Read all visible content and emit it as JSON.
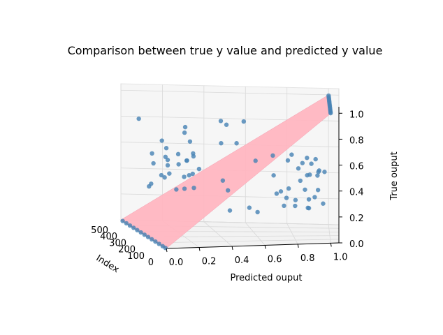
{
  "chart_data": {
    "type": "scatter",
    "projection": "3d",
    "title": "Comparison between true y value and predicted y value",
    "xlabel": "Predicted ouput",
    "ylabel": "Index",
    "zlabel": "True ouput",
    "xlim": [
      0,
      1.05
    ],
    "ylim": [
      0,
      500
    ],
    "zlim": [
      0,
      1.05
    ],
    "x_ticks": [
      "0.0",
      "0.2",
      "0.4",
      "0.6",
      "0.8",
      "1.0"
    ],
    "y_ticks": [
      "0",
      "100",
      "200",
      "300",
      "400",
      "500"
    ],
    "z_ticks": [
      "0.0",
      "0.2",
      "0.4",
      "0.6",
      "0.8",
      "1.0"
    ],
    "grid": true,
    "surface": {
      "description_equation": "true = predicted",
      "color": "#ffb6c1"
    },
    "point_color": "#4682b4",
    "series": [
      {
        "points": [
          [
            0.0,
            0.0,
            10
          ],
          [
            0.0,
            0.0,
            40
          ],
          [
            0.0,
            0.0,
            80
          ],
          [
            0.0,
            0.0,
            120
          ],
          [
            0.0,
            0.0,
            160
          ],
          [
            0.0,
            0.0,
            200
          ],
          [
            0.0,
            0.0,
            240
          ],
          [
            0.0,
            0.0,
            280
          ],
          [
            0.0,
            0.0,
            320
          ],
          [
            0.0,
            0.0,
            360
          ],
          [
            0.0,
            0.0,
            400
          ],
          [
            0.0,
            0.0,
            440
          ],
          [
            0.0,
            0.0,
            480
          ],
          [
            1.0,
            1.0,
            10
          ],
          [
            1.0,
            1.0,
            40
          ],
          [
            1.0,
            1.0,
            80
          ],
          [
            1.0,
            1.0,
            120
          ],
          [
            1.0,
            1.0,
            160
          ],
          [
            1.0,
            1.0,
            200
          ],
          [
            1.0,
            1.0,
            240
          ],
          [
            1.0,
            1.0,
            280
          ],
          [
            1.0,
            1.0,
            320
          ],
          [
            1.0,
            1.0,
            360
          ],
          [
            1.0,
            1.0,
            400
          ],
          [
            1.0,
            1.0,
            440
          ],
          [
            1.0,
            1.0,
            480
          ],
          [
            0.05,
            0.55,
            60
          ],
          [
            0.08,
            0.62,
            140
          ],
          [
            0.1,
            0.45,
            220
          ],
          [
            0.12,
            0.7,
            300
          ],
          [
            0.15,
            0.4,
            380
          ],
          [
            0.07,
            0.8,
            460
          ],
          [
            0.18,
            0.52,
            90
          ],
          [
            0.2,
            0.6,
            170
          ],
          [
            0.22,
            0.35,
            250
          ],
          [
            0.25,
            0.75,
            330
          ],
          [
            0.1,
            0.3,
            410
          ],
          [
            0.14,
            0.66,
            30
          ],
          [
            0.16,
            0.5,
            110
          ],
          [
            0.2,
            0.85,
            190
          ],
          [
            0.05,
            0.38,
            270
          ],
          [
            0.09,
            0.58,
            350
          ],
          [
            0.13,
            0.47,
            430
          ],
          [
            0.17,
            0.72,
            15
          ],
          [
            0.21,
            0.42,
            95
          ],
          [
            0.24,
            0.63,
            175
          ],
          [
            0.3,
            0.5,
            255
          ],
          [
            0.28,
            0.68,
            335
          ],
          [
            0.32,
            0.4,
            415
          ],
          [
            0.35,
            0.78,
            45
          ],
          [
            0.06,
            0.65,
            125
          ],
          [
            0.11,
            0.55,
            205
          ],
          [
            0.19,
            0.33,
            285
          ],
          [
            0.23,
            0.57,
            365
          ],
          [
            0.26,
            0.46,
            445
          ],
          [
            0.04,
            0.74,
            75
          ],
          [
            0.85,
            0.4,
            60
          ],
          [
            0.88,
            0.3,
            140
          ],
          [
            0.9,
            0.55,
            220
          ],
          [
            0.82,
            0.2,
            300
          ],
          [
            0.95,
            0.45,
            380
          ],
          [
            0.8,
            0.5,
            460
          ],
          [
            0.87,
            0.25,
            90
          ],
          [
            0.92,
            0.6,
            170
          ],
          [
            0.78,
            0.35,
            250
          ],
          [
            0.84,
            0.48,
            330
          ],
          [
            0.9,
            0.15,
            410
          ],
          [
            0.86,
            0.52,
            30
          ],
          [
            0.93,
            0.38,
            110
          ],
          [
            0.81,
            0.28,
            190
          ],
          [
            0.88,
            0.58,
            270
          ],
          [
            0.94,
            0.42,
            350
          ],
          [
            0.79,
            0.22,
            430
          ],
          [
            0.83,
            0.62,
            15
          ],
          [
            0.91,
            0.33,
            95
          ],
          [
            0.97,
            0.5,
            175
          ],
          [
            0.7,
            0.45,
            255
          ],
          [
            0.75,
            0.3,
            335
          ],
          [
            0.72,
            0.55,
            415
          ],
          [
            0.68,
            0.38,
            45
          ],
          [
            0.96,
            0.27,
            125
          ],
          [
            0.89,
            0.47,
            205
          ],
          [
            0.8,
            0.6,
            285
          ],
          [
            0.77,
            0.18,
            365
          ],
          [
            0.86,
            0.35,
            445
          ],
          [
            0.93,
            0.53,
            75
          ],
          [
            0.4,
            0.9,
            100
          ],
          [
            0.45,
            0.2,
            200
          ],
          [
            0.55,
            0.85,
            300
          ],
          [
            0.6,
            0.15,
            400
          ],
          [
            0.35,
            0.95,
            50
          ],
          [
            0.65,
            0.1,
            450
          ],
          [
            0.5,
            0.7,
            250
          ],
          [
            0.48,
            0.3,
            350
          ],
          [
            0.58,
            0.6,
            150
          ],
          [
            0.42,
            0.42,
            230
          ]
        ]
      }
    ]
  }
}
